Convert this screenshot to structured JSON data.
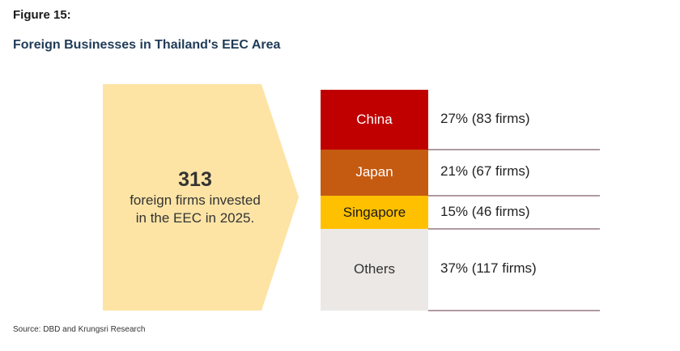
{
  "figure_label": "Figure 15:",
  "title": "Foreign Businesses in Thailand's EEC Area",
  "callout": {
    "number": "313",
    "line1": "foreign firms invested",
    "line2": "in the EEC in 2025."
  },
  "source": "Source: DBD and Krungsri Research",
  "chart_data": {
    "type": "bar",
    "title": "Foreign Businesses in Thailand's EEC Area",
    "total_firms": 313,
    "categories": [
      "China",
      "Japan",
      "Singapore",
      "Others"
    ],
    "values_percent": [
      27,
      21,
      15,
      37
    ],
    "firms": [
      83,
      67,
      46,
      117
    ],
    "labels": [
      "27% (83 firms)",
      "21% (67 firms)",
      "15% (46 firms)",
      "37% (117 firms)"
    ],
    "colors": [
      "#c00000",
      "#c55a11",
      "#ffc000",
      "#ece8e6"
    ],
    "text_colors": [
      "#ffffff",
      "#ffffff",
      "#1a1a1a",
      "#333333"
    ]
  }
}
